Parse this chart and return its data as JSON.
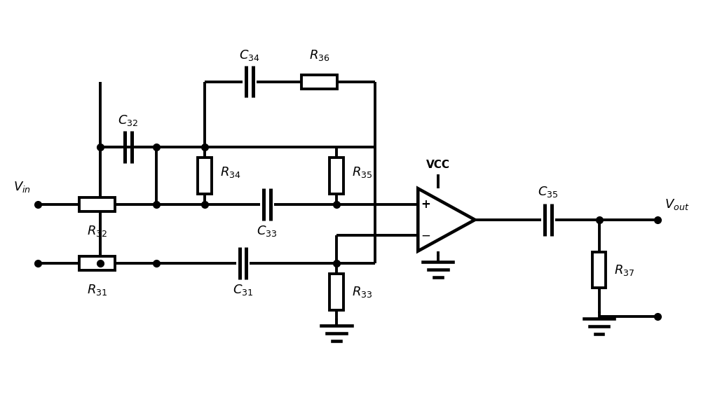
{
  "figsize": [
    10.0,
    5.77
  ],
  "dpi": 100,
  "lw": 2.8,
  "bg_color": "#ffffff",
  "fg_color": "#000000",
  "comp_lw": 2.8,
  "font_size": 13
}
